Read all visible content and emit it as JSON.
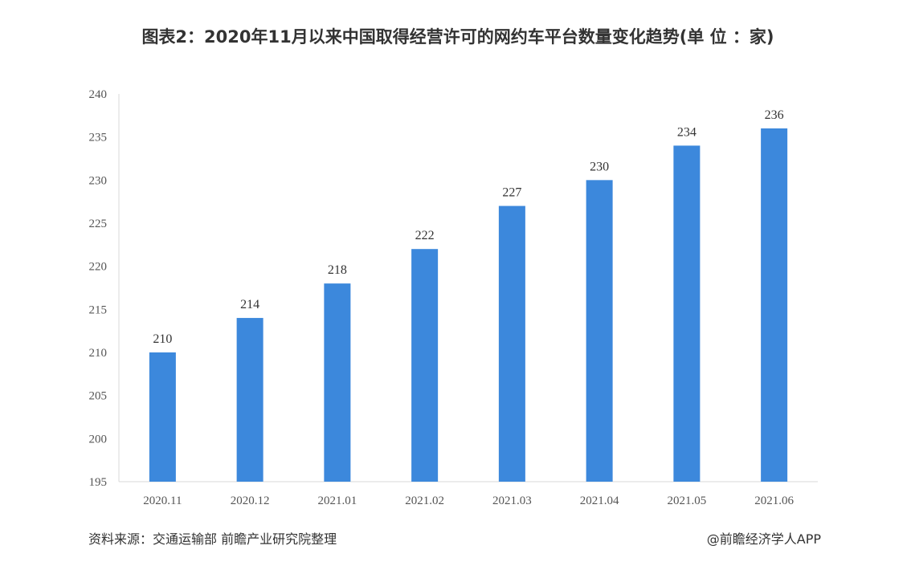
{
  "chart_data": {
    "type": "bar",
    "title": "图表2：2020年11月以来中国取得经营许可的网约车平台数量变化趋势(单 位 ：家)",
    "categories": [
      "2020.11",
      "2020.12",
      "2021.01",
      "2021.02",
      "2021.03",
      "2021.04",
      "2021.05",
      "2021.06"
    ],
    "values": [
      210,
      214,
      218,
      222,
      227,
      230,
      234,
      236
    ],
    "ylim": [
      195,
      240
    ],
    "yticks": [
      195,
      200,
      205,
      210,
      215,
      220,
      225,
      230,
      235,
      240
    ],
    "xlabel": "",
    "ylabel": "",
    "bar_color": "#3c88dc",
    "grid": false,
    "data_labels": true
  },
  "footer": {
    "source": "资料来源：交通运输部 前瞻产业研究院整理",
    "credit": "@前瞻经济学人APP"
  }
}
